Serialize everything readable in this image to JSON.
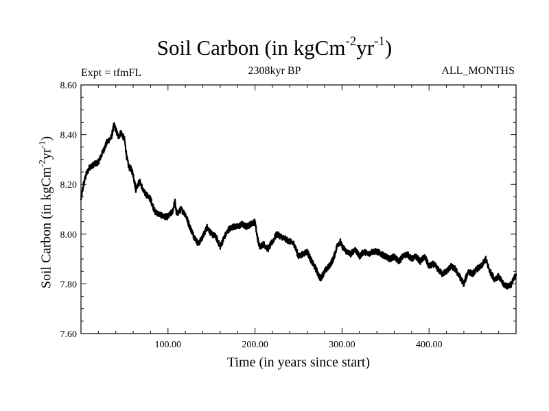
{
  "chart_data": {
    "type": "line",
    "title": {
      "text": "Soil Carbon (in kgCm",
      "sup1": "-2",
      "mid": "yr",
      "sup2": "-1",
      "end": ")"
    },
    "left_label": "Expt = tfmFL",
    "subtitle": "2308kyr BP",
    "right_label": "ALL_MONTHS",
    "xlabel": "Time (in years since start)",
    "ylabel": {
      "text": "Soil Carbon (in kgCm",
      "sup1": "-2",
      "mid": "yr",
      "sup2": "-1",
      "end": ")"
    },
    "xlim": [
      0,
      500
    ],
    "ylim": [
      7.6,
      8.6
    ],
    "x_ticks": [
      {
        "value": 100,
        "label": "100.00"
      },
      {
        "value": 200,
        "label": "200.00"
      },
      {
        "value": 300,
        "label": "300.00"
      },
      {
        "value": 400,
        "label": "400.00"
      }
    ],
    "y_ticks": [
      {
        "value": 7.6,
        "label": "7.60"
      },
      {
        "value": 7.8,
        "label": "7.80"
      },
      {
        "value": 8.0,
        "label": "8.00"
      },
      {
        "value": 8.2,
        "label": "8.20"
      },
      {
        "value": 8.4,
        "label": "8.40"
      },
      {
        "value": 8.6,
        "label": "8.60"
      }
    ],
    "series": [
      {
        "name": "Soil Carbon",
        "color": "#000000",
        "x": [
          0,
          3,
          6,
          10,
          15,
          20,
          25,
          30,
          35,
          38,
          40,
          43,
          46,
          50,
          53,
          55,
          58,
          60,
          63,
          65,
          68,
          72,
          75,
          80,
          85,
          90,
          95,
          100,
          105,
          108,
          110,
          115,
          120,
          125,
          130,
          135,
          140,
          145,
          150,
          155,
          160,
          165,
          170,
          175,
          180,
          185,
          190,
          195,
          200,
          202,
          205,
          210,
          215,
          220,
          225,
          230,
          235,
          240,
          245,
          250,
          255,
          260,
          265,
          270,
          275,
          280,
          285,
          290,
          295,
          298,
          300,
          305,
          310,
          315,
          320,
          325,
          330,
          335,
          340,
          345,
          350,
          355,
          360,
          365,
          370,
          375,
          380,
          385,
          390,
          395,
          400,
          405,
          410,
          415,
          420,
          425,
          430,
          435,
          440,
          445,
          450,
          455,
          460,
          465,
          470,
          475,
          480,
          485,
          490,
          495,
          500
        ],
        "y": [
          8.14,
          8.2,
          8.24,
          8.27,
          8.28,
          8.29,
          8.33,
          8.37,
          8.39,
          8.44,
          8.42,
          8.39,
          8.41,
          8.38,
          8.3,
          8.27,
          8.26,
          8.24,
          8.18,
          8.2,
          8.21,
          8.17,
          8.16,
          8.14,
          8.09,
          8.08,
          8.07,
          8.07,
          8.09,
          8.13,
          8.08,
          8.1,
          8.08,
          8.03,
          7.99,
          7.96,
          7.99,
          8.03,
          8.0,
          7.99,
          7.95,
          7.99,
          8.02,
          8.03,
          8.03,
          8.04,
          8.03,
          8.04,
          8.05,
          8.0,
          7.95,
          7.96,
          7.94,
          7.97,
          8.0,
          7.99,
          7.98,
          7.97,
          7.96,
          7.91,
          7.92,
          7.93,
          7.89,
          7.86,
          7.82,
          7.85,
          7.87,
          7.9,
          7.96,
          7.97,
          7.95,
          7.93,
          7.92,
          7.94,
          7.91,
          7.93,
          7.92,
          7.93,
          7.93,
          7.92,
          7.91,
          7.9,
          7.91,
          7.89,
          7.91,
          7.92,
          7.9,
          7.91,
          7.89,
          7.91,
          7.87,
          7.88,
          7.86,
          7.84,
          7.85,
          7.87,
          7.86,
          7.83,
          7.8,
          7.85,
          7.84,
          7.86,
          7.87,
          7.9,
          7.85,
          7.82,
          7.83,
          7.8,
          7.79,
          7.8,
          7.84
        ]
      }
    ]
  }
}
